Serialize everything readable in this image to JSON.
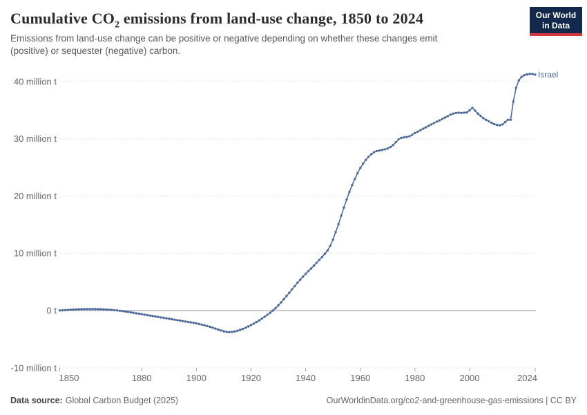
{
  "header": {
    "title_pre": "Cumulative CO",
    "title_sub": "2",
    "title_post": " emissions from land-use change, 1850 to 2024",
    "subtitle": "Emissions from land-use change can be positive or negative depending on whether these changes emit (positive) or sequester (negative) carbon."
  },
  "logo": {
    "line1": "Our World",
    "line2": "in Data",
    "bg_color": "#12294b",
    "bar_color": "#d3373e"
  },
  "footer": {
    "datasource_label": "Data source:",
    "datasource_value": "Global Carbon Budget (2025)",
    "credit": "OurWorldinData.org/co2-and-greenhouse-gas-emissions | CC BY"
  },
  "chart_data": {
    "type": "line",
    "title": "Cumulative CO2 emissions from land-use change, 1850 to 2024",
    "unit": "million t",
    "line_color": "#4c6a9c",
    "entity_label": "Israel",
    "grid": "horizontal dashed",
    "legend_position": "end-of-line",
    "xlim": [
      1850,
      2024
    ],
    "ylim": [
      -10,
      42
    ],
    "x_step": 1,
    "x_ticks": [
      1850,
      1880,
      1900,
      1920,
      1940,
      1960,
      1980,
      2000,
      2024
    ],
    "y_ticks": [
      {
        "value": -10,
        "label": "-10 million t"
      },
      {
        "value": 0,
        "label": "0 t"
      },
      {
        "value": 10,
        "label": "10 million t"
      },
      {
        "value": 20,
        "label": "20 million t"
      },
      {
        "value": 30,
        "label": "30 million t"
      },
      {
        "value": 40,
        "label": "40 million t"
      }
    ],
    "series": [
      {
        "name": "Israel",
        "x_start": 1850,
        "values": [
          0.02,
          0.05,
          0.08,
          0.11,
          0.14,
          0.17,
          0.2,
          0.22,
          0.24,
          0.25,
          0.26,
          0.27,
          0.27,
          0.26,
          0.25,
          0.23,
          0.21,
          0.18,
          0.15,
          0.11,
          0.07,
          0.02,
          -0.04,
          -0.1,
          -0.17,
          -0.24,
          -0.31,
          -0.39,
          -0.47,
          -0.55,
          -0.63,
          -0.71,
          -0.79,
          -0.87,
          -0.95,
          -1.03,
          -1.11,
          -1.19,
          -1.27,
          -1.35,
          -1.43,
          -1.51,
          -1.59,
          -1.67,
          -1.75,
          -1.83,
          -1.91,
          -1.99,
          -2.07,
          -2.15,
          -2.24,
          -2.34,
          -2.45,
          -2.57,
          -2.7,
          -2.84,
          -2.99,
          -3.15,
          -3.32,
          -3.48,
          -3.62,
          -3.72,
          -3.76,
          -3.73,
          -3.65,
          -3.53,
          -3.38,
          -3.2,
          -3.0,
          -2.78,
          -2.54,
          -2.28,
          -2.0,
          -1.71,
          -1.4,
          -1.08,
          -0.74,
          -0.38,
          0.0,
          0.42,
          0.9,
          1.42,
          1.98,
          2.55,
          3.12,
          3.7,
          4.28,
          4.85,
          5.4,
          5.92,
          6.4,
          6.88,
          7.36,
          7.85,
          8.35,
          8.85,
          9.36,
          9.9,
          10.5,
          11.3,
          12.4,
          13.7,
          15.1,
          16.55,
          18.0,
          19.4,
          20.7,
          21.9,
          23.0,
          24.0,
          24.9,
          25.65,
          26.3,
          26.85,
          27.3,
          27.65,
          27.85,
          27.95,
          28.05,
          28.15,
          28.3,
          28.55,
          28.9,
          29.4,
          29.9,
          30.15,
          30.25,
          30.3,
          30.45,
          30.7,
          31.0,
          31.25,
          31.5,
          31.75,
          32.0,
          32.25,
          32.5,
          32.75,
          33.0,
          33.2,
          33.45,
          33.7,
          33.95,
          34.2,
          34.4,
          34.5,
          34.55,
          34.5,
          34.55,
          34.6,
          34.95,
          35.4,
          34.9,
          34.4,
          34.0,
          33.6,
          33.3,
          33.05,
          32.8,
          32.55,
          32.4,
          32.35,
          32.5,
          32.9,
          33.3,
          33.3,
          36.5,
          38.9,
          40.2,
          40.8,
          41.1,
          41.25,
          41.3,
          41.3,
          41.2
        ]
      }
    ]
  }
}
